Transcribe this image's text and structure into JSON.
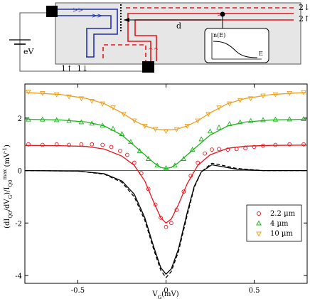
{
  "schematic": {
    "bias_label": "eV",
    "distance_label": "d",
    "ch_in_up": "1",
    "ch_in_down": "1",
    "ch_out_down": "2",
    "ch_out_up": "2",
    "inset_ylabel": "n(E)",
    "inset_xlabel": "E",
    "colors": {
      "blue": "#1f2fb0",
      "red": "#e8141c",
      "box": "#e6e6e6"
    }
  },
  "chart_data": {
    "type": "line",
    "xlabel": "V_G(mV)",
    "ylabel": "(dI_Q0/dV_G)/I_Q0^max (mV^-1)",
    "xlim": [
      -0.8,
      0.8
    ],
    "ylim": [
      -4.3,
      3.3
    ],
    "xticks": [
      -0.5,
      0,
      0.5
    ],
    "yticks": [
      -4,
      -2,
      0,
      2
    ],
    "xtick_labels": [
      "-0.5",
      "0",
      "0.5"
    ],
    "ytick_labels": [
      "-4",
      "-2",
      "0",
      "2"
    ],
    "legend_position": "lower-right",
    "series": [
      {
        "name": "2.2 µm",
        "color": "#e8141c",
        "marker": "circle",
        "offset": 1,
        "fit": [
          [
            -0.8,
            0.96
          ],
          [
            -0.6,
            0.95
          ],
          [
            -0.45,
            0.92
          ],
          [
            -0.35,
            0.82
          ],
          [
            -0.25,
            0.55
          ],
          [
            -0.18,
            0.2
          ],
          [
            -0.12,
            -0.4
          ],
          [
            -0.07,
            -1.2
          ],
          [
            -0.03,
            -1.8
          ],
          [
            0,
            -2.0
          ],
          [
            0.03,
            -1.85
          ],
          [
            0.07,
            -1.3
          ],
          [
            0.12,
            -0.5
          ],
          [
            0.18,
            0.2
          ],
          [
            0.25,
            0.6
          ],
          [
            0.35,
            0.85
          ],
          [
            0.45,
            0.93
          ],
          [
            0.6,
            0.96
          ],
          [
            0.8,
            0.97
          ]
        ],
        "points": [
          [
            -0.78,
            1.0
          ],
          [
            -0.7,
            0.98
          ],
          [
            -0.62,
            1.0
          ],
          [
            -0.55,
            0.98
          ],
          [
            -0.48,
            1.0
          ],
          [
            -0.42,
            1.0
          ],
          [
            -0.36,
            0.98
          ],
          [
            -0.31,
            0.9
          ],
          [
            -0.26,
            0.75
          ],
          [
            -0.22,
            0.6
          ],
          [
            -0.18,
            0.3
          ],
          [
            -0.14,
            -0.1
          ],
          [
            -0.1,
            -0.7
          ],
          [
            -0.06,
            -1.3
          ],
          [
            -0.03,
            -1.8
          ],
          [
            0.0,
            -2.15
          ],
          [
            0.03,
            -2.0
          ],
          [
            0.06,
            -1.5
          ],
          [
            0.1,
            -0.8
          ],
          [
            0.14,
            -0.2
          ],
          [
            0.18,
            0.3
          ],
          [
            0.22,
            0.65
          ],
          [
            0.26,
            0.8
          ],
          [
            0.3,
            0.82
          ],
          [
            0.35,
            0.8
          ],
          [
            0.4,
            0.82
          ],
          [
            0.45,
            0.85
          ],
          [
            0.5,
            0.9
          ],
          [
            0.55,
            0.95
          ],
          [
            0.62,
            0.98
          ],
          [
            0.7,
            1.0
          ],
          [
            0.78,
            1.0
          ]
        ]
      },
      {
        "name": "4 µm",
        "color": "#1db31d",
        "marker": "triangle-up",
        "offset": 2,
        "fit": [
          [
            -0.8,
            1.96
          ],
          [
            -0.6,
            1.93
          ],
          [
            -0.45,
            1.85
          ],
          [
            -0.35,
            1.7
          ],
          [
            -0.25,
            1.35
          ],
          [
            -0.18,
            0.95
          ],
          [
            -0.12,
            0.6
          ],
          [
            -0.07,
            0.3
          ],
          [
            -0.03,
            0.12
          ],
          [
            0,
            0.08
          ],
          [
            0.03,
            0.12
          ],
          [
            0.07,
            0.3
          ],
          [
            0.12,
            0.6
          ],
          [
            0.18,
            0.95
          ],
          [
            0.25,
            1.35
          ],
          [
            0.35,
            1.7
          ],
          [
            0.45,
            1.85
          ],
          [
            0.6,
            1.93
          ],
          [
            0.8,
            1.96
          ]
        ],
        "points": [
          [
            -0.78,
            1.95
          ],
          [
            -0.7,
            1.95
          ],
          [
            -0.62,
            1.93
          ],
          [
            -0.55,
            1.9
          ],
          [
            -0.48,
            1.85
          ],
          [
            -0.42,
            1.8
          ],
          [
            -0.36,
            1.72
          ],
          [
            -0.3,
            1.6
          ],
          [
            -0.25,
            1.4
          ],
          [
            -0.2,
            1.1
          ],
          [
            -0.15,
            0.75
          ],
          [
            -0.1,
            0.45
          ],
          [
            -0.05,
            0.2
          ],
          [
            0.0,
            0.1
          ],
          [
            0.05,
            0.2
          ],
          [
            0.1,
            0.45
          ],
          [
            0.15,
            0.8
          ],
          [
            0.2,
            1.2
          ],
          [
            0.25,
            1.5
          ],
          [
            0.3,
            1.65
          ],
          [
            0.36,
            1.78
          ],
          [
            0.42,
            1.85
          ],
          [
            0.48,
            1.9
          ],
          [
            0.55,
            1.93
          ],
          [
            0.62,
            1.95
          ],
          [
            0.7,
            1.96
          ],
          [
            0.78,
            1.97
          ]
        ]
      },
      {
        "name": "10 µm",
        "color": "#f0a020",
        "marker": "triangle-down",
        "offset": 3,
        "fit": [
          [
            -0.8,
            2.98
          ],
          [
            -0.6,
            2.9
          ],
          [
            -0.45,
            2.75
          ],
          [
            -0.35,
            2.55
          ],
          [
            -0.25,
            2.2
          ],
          [
            -0.18,
            1.9
          ],
          [
            -0.12,
            1.7
          ],
          [
            -0.06,
            1.58
          ],
          [
            0,
            1.55
          ],
          [
            0.06,
            1.58
          ],
          [
            0.12,
            1.7
          ],
          [
            0.18,
            1.9
          ],
          [
            0.25,
            2.2
          ],
          [
            0.35,
            2.55
          ],
          [
            0.45,
            2.75
          ],
          [
            0.6,
            2.9
          ],
          [
            0.8,
            2.98
          ]
        ],
        "points": [
          [
            -0.78,
            3.0
          ],
          [
            -0.7,
            2.95
          ],
          [
            -0.62,
            2.9
          ],
          [
            -0.55,
            2.82
          ],
          [
            -0.48,
            2.75
          ],
          [
            -0.42,
            2.65
          ],
          [
            -0.36,
            2.55
          ],
          [
            -0.3,
            2.4
          ],
          [
            -0.24,
            2.15
          ],
          [
            -0.18,
            1.9
          ],
          [
            -0.12,
            1.7
          ],
          [
            -0.06,
            1.58
          ],
          [
            0.0,
            1.5
          ],
          [
            0.06,
            1.57
          ],
          [
            0.12,
            1.7
          ],
          [
            0.18,
            1.9
          ],
          [
            0.24,
            2.15
          ],
          [
            0.3,
            2.4
          ],
          [
            0.36,
            2.55
          ],
          [
            0.42,
            2.68
          ],
          [
            0.48,
            2.75
          ],
          [
            0.55,
            2.85
          ],
          [
            0.62,
            2.9
          ],
          [
            0.7,
            2.95
          ],
          [
            0.78,
            2.98
          ]
        ]
      },
      {
        "name": "",
        "color": "#000000",
        "marker": "none",
        "style": "solid",
        "fit": [
          [
            -0.8,
            0.0
          ],
          [
            -0.5,
            -0.02
          ],
          [
            -0.35,
            -0.12
          ],
          [
            -0.25,
            -0.4
          ],
          [
            -0.18,
            -0.9
          ],
          [
            -0.12,
            -1.8
          ],
          [
            -0.07,
            -2.9
          ],
          [
            -0.03,
            -3.7
          ],
          [
            0,
            -3.95
          ],
          [
            0.03,
            -3.75
          ],
          [
            0.07,
            -3.0
          ],
          [
            0.12,
            -1.6
          ],
          [
            0.16,
            -0.6
          ],
          [
            0.2,
            -0.05
          ],
          [
            0.26,
            0.22
          ],
          [
            0.32,
            0.15
          ],
          [
            0.4,
            0.05
          ],
          [
            0.55,
            0.0
          ],
          [
            0.8,
            0.0
          ]
        ]
      },
      {
        "name": "",
        "color": "#000000",
        "marker": "none",
        "style": "dashed",
        "fit": [
          [
            -0.8,
            0.0
          ],
          [
            -0.5,
            -0.02
          ],
          [
            -0.35,
            -0.14
          ],
          [
            -0.25,
            -0.45
          ],
          [
            -0.18,
            -1.0
          ],
          [
            -0.12,
            -1.9
          ],
          [
            -0.07,
            -3.0
          ],
          [
            -0.03,
            -3.8
          ],
          [
            0,
            -4.08
          ],
          [
            0.03,
            -3.85
          ],
          [
            0.07,
            -3.1
          ],
          [
            0.12,
            -1.7
          ],
          [
            0.16,
            -0.65
          ],
          [
            0.2,
            -0.05
          ],
          [
            0.26,
            0.28
          ],
          [
            0.32,
            0.2
          ],
          [
            0.4,
            0.08
          ],
          [
            0.55,
            0.0
          ],
          [
            0.8,
            0.0
          ]
        ]
      }
    ]
  }
}
